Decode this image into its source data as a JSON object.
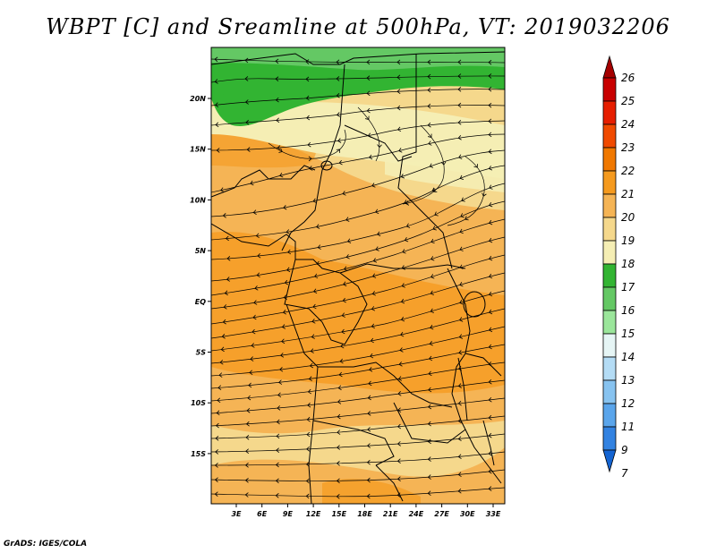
{
  "title": "WBPT [C] and Sreamline at 500hPa, VT: 2019032206",
  "credit": "GrADS: IGES/COLA",
  "map": {
    "lon_ticks": [
      "3E",
      "6E",
      "9E",
      "12E",
      "15E",
      "18E",
      "21E",
      "24E",
      "27E",
      "30E",
      "33E"
    ],
    "lat_ticks": [
      "20N",
      "15N",
      "10N",
      "5N",
      "EQ",
      "5S",
      "10S",
      "15S"
    ],
    "lon_range": [
      0,
      35
    ],
    "lat_range": [
      -20,
      25
    ],
    "streamline_flow": "mostly westward (arrows point west)"
  },
  "colorbar": {
    "labels": [
      "26",
      "25",
      "24",
      "23",
      "22",
      "21",
      "20",
      "19",
      "18",
      "17",
      "16",
      "15",
      "14",
      "13",
      "12",
      "11",
      "9",
      "7"
    ],
    "colors": [
      "#a50000",
      "#c80000",
      "#e61e00",
      "#f04a00",
      "#f07800",
      "#f59a1e",
      "#f5b455",
      "#f5d88c",
      "#f5eeb4",
      "#32b432",
      "#64c864",
      "#9be69b",
      "#e6f5f5",
      "#b4dcf5",
      "#87c3f0",
      "#5aa5eb",
      "#3282e1",
      "#1464d2"
    ]
  }
}
